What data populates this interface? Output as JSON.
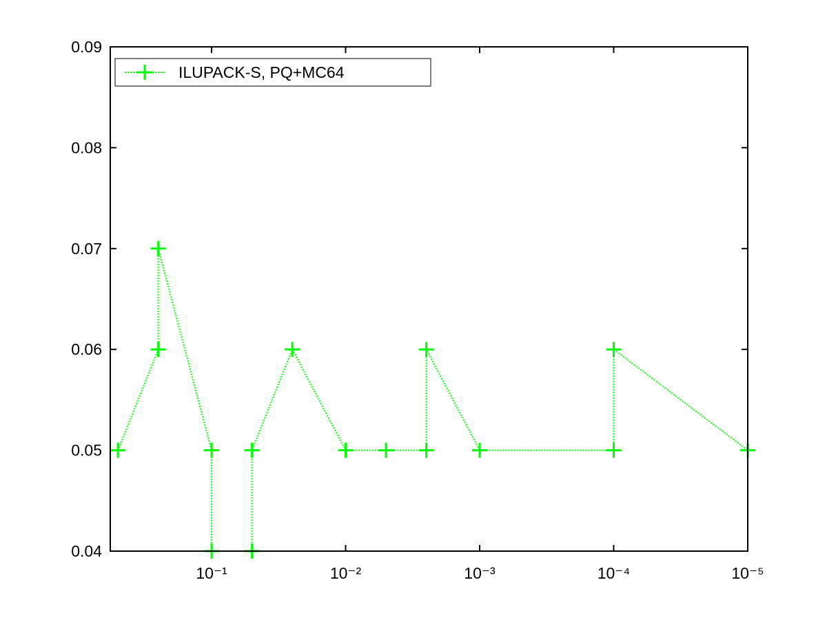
{
  "chart_data": {
    "type": "line",
    "xscale": "log",
    "xdir": "reverse",
    "xlim": [
      1e-05,
      0.57
    ],
    "ylim": [
      0.04,
      0.09
    ],
    "xticks": [
      {
        "value": 0.1,
        "label": "10⁻¹"
      },
      {
        "value": 0.01,
        "label": "10⁻²"
      },
      {
        "value": 0.001,
        "label": "10⁻³"
      },
      {
        "value": 0.0001,
        "label": "10⁻⁴"
      },
      {
        "value": 1e-05,
        "label": "10⁻⁵"
      }
    ],
    "yticks": [
      0.04,
      0.05,
      0.06,
      0.07,
      0.08,
      0.09
    ],
    "grid": false,
    "legend": "upper left",
    "x": [
      0.5,
      0.25,
      0.25,
      0.1,
      0.1,
      0.05,
      0.05,
      0.025,
      0.01,
      0.005,
      0.0025,
      0.0025,
      0.001,
      0.0001,
      0.0001,
      1e-05
    ],
    "series": [
      {
        "name": "ILUPACK-S, PQ+MC64",
        "color": "#00ff00",
        "values": [
          0.05,
          0.06,
          0.07,
          0.05,
          0.04,
          0.04,
          0.05,
          0.06,
          0.05,
          0.05,
          0.05,
          0.06,
          0.05,
          0.05,
          0.06,
          0.05
        ]
      }
    ]
  }
}
